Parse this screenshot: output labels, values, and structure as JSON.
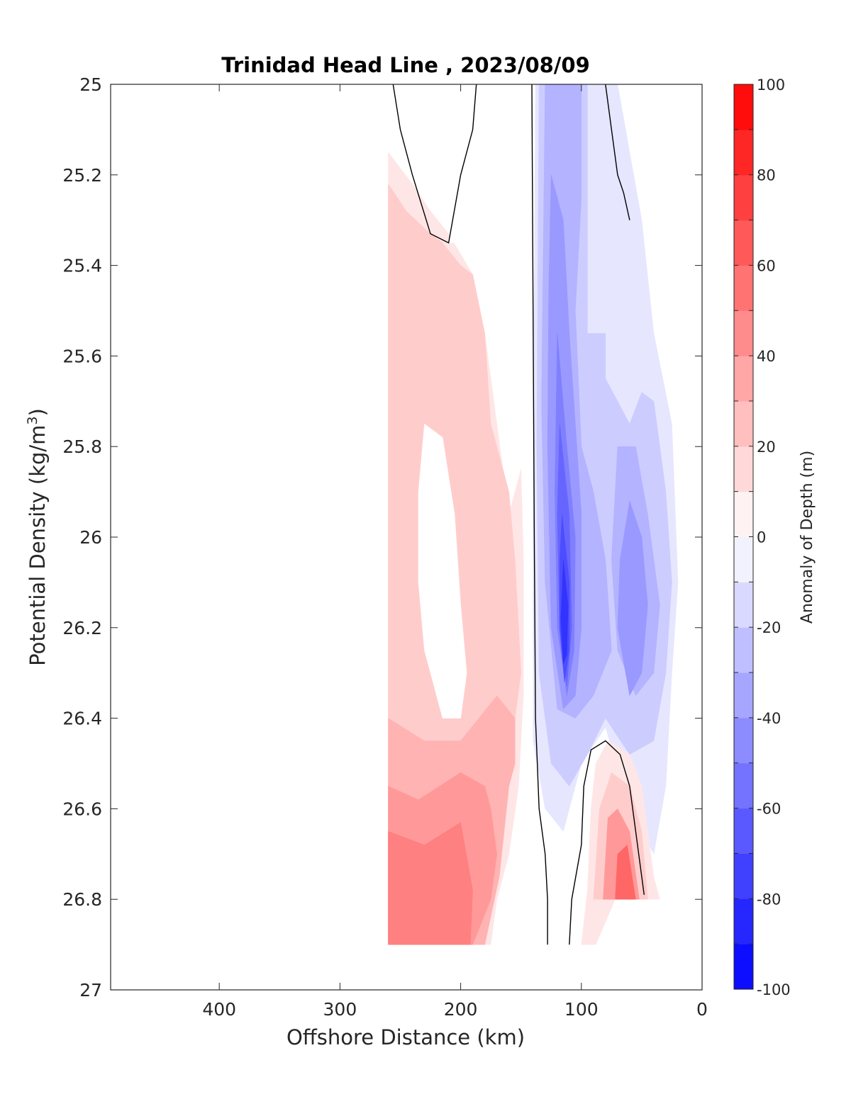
{
  "chart_data": {
    "type": "contour",
    "title": "Trinidad Head Line , 2023/08/09",
    "xlabel": "Offshore Distance (km)",
    "ylabel_main": "Potential Density (kg/m",
    "ylabel_sup": "3",
    "ylabel_end": ")",
    "colorbar_label": "Anomaly of Depth (m)",
    "xlim": [
      490,
      0
    ],
    "x_reversed": true,
    "ylim": [
      25,
      27
    ],
    "y_reversed": true,
    "x_ticks": [
      400,
      300,
      200,
      100,
      0
    ],
    "x_tick_labels": [
      "400",
      "300",
      "200",
      "100",
      "0"
    ],
    "y_ticks": [
      25,
      25.2,
      25.4,
      25.6,
      25.8,
      26,
      26.2,
      26.4,
      26.6,
      26.8,
      27
    ],
    "y_tick_labels": [
      "25",
      "25.2",
      "25.4",
      "25.6",
      "25.8",
      "26",
      "26.2",
      "26.4",
      "26.6",
      "26.8",
      "27"
    ],
    "colorbar": {
      "range": [
        -100,
        100
      ],
      "step": 10,
      "ticks": [
        100,
        80,
        60,
        40,
        20,
        0,
        -20,
        -40,
        -60,
        -80,
        -100
      ],
      "tick_labels": [
        "100",
        "80",
        "60",
        "40",
        "20",
        "0",
        "-20",
        "-40",
        "-60",
        "-80",
        "-100"
      ],
      "colormap": "blue-white-red",
      "low_color": "#0000ff",
      "high_color": "#ff0000",
      "mid_color": "#ffffff"
    },
    "data_extent": {
      "x": [
        20,
        260
      ],
      "y": [
        25,
        26.9
      ]
    },
    "zero_contour_color": "#000000",
    "regions": [
      {
        "level": 10,
        "points": [
          [
            260,
            25.15
          ],
          [
            240,
            25.22
          ],
          [
            225,
            25.28
          ],
          [
            210,
            25.33
          ],
          [
            190,
            25.42
          ],
          [
            180,
            25.55
          ],
          [
            170,
            25.75
          ],
          [
            160,
            25.95
          ],
          [
            150,
            25.85
          ],
          [
            148,
            26.05
          ],
          [
            148,
            26.35
          ],
          [
            152,
            26.55
          ],
          [
            160,
            26.7
          ],
          [
            170,
            26.8
          ],
          [
            175,
            26.9
          ],
          [
            260,
            26.9
          ]
        ]
      },
      {
        "level": 20,
        "points": [
          [
            260,
            25.22
          ],
          [
            245,
            25.28
          ],
          [
            225,
            25.33
          ],
          [
            215,
            25.35
          ],
          [
            200,
            25.4
          ],
          [
            190,
            25.42
          ],
          [
            180,
            25.55
          ],
          [
            175,
            25.75
          ],
          [
            165,
            25.85
          ],
          [
            160,
            25.9
          ],
          [
            155,
            26.05
          ],
          [
            150,
            26.3
          ],
          [
            160,
            26.5
          ],
          [
            165,
            26.6
          ],
          [
            175,
            26.8
          ],
          [
            180,
            26.9
          ],
          [
            260,
            26.9
          ]
        ]
      },
      {
        "level": 30,
        "points": [
          [
            260,
            26.4
          ],
          [
            230,
            26.45
          ],
          [
            200,
            26.45
          ],
          [
            170,
            26.35
          ],
          [
            155,
            26.4
          ],
          [
            155,
            26.5
          ],
          [
            160,
            26.55
          ],
          [
            168,
            26.75
          ],
          [
            180,
            26.9
          ],
          [
            260,
            26.9
          ]
        ]
      },
      {
        "level": 40,
        "points": [
          [
            260,
            26.55
          ],
          [
            235,
            26.58
          ],
          [
            200,
            26.52
          ],
          [
            180,
            26.55
          ],
          [
            175,
            26.6
          ],
          [
            170,
            26.7
          ],
          [
            175,
            26.8
          ],
          [
            190,
            26.9
          ],
          [
            260,
            26.9
          ]
        ]
      },
      {
        "level": 50,
        "points": [
          [
            260,
            26.65
          ],
          [
            230,
            26.68
          ],
          [
            200,
            26.63
          ],
          [
            190,
            26.78
          ],
          [
            192,
            26.9
          ],
          [
            260,
            26.9
          ]
        ]
      },
      {
        "level": -10,
        "points": [
          [
            138,
            25.0
          ],
          [
            70,
            25.0
          ],
          [
            50,
            25.3
          ],
          [
            40,
            25.55
          ],
          [
            25,
            25.75
          ],
          [
            20,
            26.1
          ],
          [
            25,
            26.3
          ],
          [
            30,
            26.55
          ],
          [
            40,
            26.7
          ],
          [
            60,
            26.6
          ],
          [
            80,
            26.42
          ],
          [
            100,
            26.5
          ],
          [
            115,
            26.65
          ],
          [
            130,
            26.6
          ],
          [
            140,
            26.45
          ],
          [
            140,
            25.8
          ]
        ]
      },
      {
        "level": -20,
        "points": [
          [
            135,
            25.0
          ],
          [
            95,
            25.0
          ],
          [
            95,
            25.55
          ],
          [
            80,
            25.55
          ],
          [
            80,
            25.65
          ],
          [
            70,
            25.7
          ],
          [
            60,
            25.75
          ],
          [
            50,
            25.68
          ],
          [
            40,
            25.7
          ],
          [
            30,
            25.9
          ],
          [
            25,
            26.1
          ],
          [
            30,
            26.3
          ],
          [
            40,
            26.45
          ],
          [
            60,
            26.48
          ],
          [
            80,
            26.4
          ],
          [
            95,
            26.48
          ],
          [
            110,
            26.55
          ],
          [
            125,
            26.5
          ],
          [
            135,
            26.3
          ],
          [
            137,
            25.8
          ]
        ]
      },
      {
        "level": -30,
        "points": [
          [
            130,
            25.0
          ],
          [
            100,
            25.0
          ],
          [
            100,
            25.25
          ],
          [
            105,
            25.5
          ],
          [
            100,
            25.8
          ],
          [
            90,
            25.9
          ],
          [
            80,
            26.05
          ],
          [
            75,
            26.25
          ],
          [
            90,
            26.35
          ],
          [
            105,
            26.4
          ],
          [
            120,
            26.38
          ],
          [
            130,
            26.1
          ],
          [
            133,
            25.7
          ]
        ]
      },
      {
        "level": -30,
        "points": [
          [
            70,
            25.8
          ],
          [
            55,
            25.8
          ],
          [
            45,
            25.95
          ],
          [
            35,
            26.15
          ],
          [
            40,
            26.3
          ],
          [
            55,
            26.35
          ],
          [
            70,
            26.25
          ],
          [
            75,
            26.05
          ]
        ]
      },
      {
        "level": -40,
        "points": [
          [
            125,
            25.2
          ],
          [
            115,
            25.3
          ],
          [
            110,
            25.55
          ],
          [
            105,
            25.75
          ],
          [
            100,
            25.95
          ],
          [
            100,
            26.2
          ],
          [
            105,
            26.35
          ],
          [
            115,
            26.38
          ],
          [
            125,
            26.2
          ],
          [
            128,
            25.8
          ],
          [
            127,
            25.45
          ]
        ]
      },
      {
        "level": -40,
        "points": [
          [
            60,
            25.92
          ],
          [
            50,
            26.0
          ],
          [
            45,
            26.15
          ],
          [
            50,
            26.3
          ],
          [
            60,
            26.35
          ],
          [
            70,
            26.2
          ],
          [
            68,
            26.05
          ]
        ]
      },
      {
        "level": -50,
        "points": [
          [
            120,
            25.55
          ],
          [
            112,
            25.8
          ],
          [
            105,
            26.0
          ],
          [
            106,
            26.25
          ],
          [
            112,
            26.35
          ],
          [
            120,
            26.2
          ],
          [
            122,
            25.9
          ]
        ]
      },
      {
        "level": -60,
        "points": [
          [
            118,
            25.75
          ],
          [
            110,
            25.95
          ],
          [
            108,
            26.2
          ],
          [
            112,
            26.33
          ],
          [
            118,
            26.2
          ],
          [
            120,
            25.95
          ]
        ]
      },
      {
        "level": -70,
        "points": [
          [
            116,
            25.95
          ],
          [
            110,
            26.1
          ],
          [
            110,
            26.25
          ],
          [
            114,
            26.32
          ],
          [
            118,
            26.2
          ],
          [
            118,
            26.05
          ]
        ]
      },
      {
        "level": -80,
        "points": [
          [
            115,
            26.05
          ],
          [
            111,
            26.15
          ],
          [
            112,
            26.26
          ],
          [
            115,
            26.28
          ],
          [
            117,
            26.18
          ]
        ]
      },
      {
        "level": 10,
        "points": [
          [
            100,
            26.9
          ],
          [
            95,
            26.78
          ],
          [
            92,
            26.6
          ],
          [
            88,
            26.5
          ],
          [
            78,
            26.45
          ],
          [
            60,
            26.48
          ],
          [
            50,
            26.55
          ],
          [
            40,
            26.75
          ],
          [
            35,
            26.8
          ],
          [
            60,
            26.8
          ],
          [
            72,
            26.8
          ],
          [
            88,
            26.9
          ]
        ]
      },
      {
        "level": 20,
        "points": [
          [
            90,
            26.8
          ],
          [
            85,
            26.6
          ],
          [
            75,
            26.52
          ],
          [
            60,
            26.55
          ],
          [
            50,
            26.65
          ],
          [
            45,
            26.8
          ]
        ]
      },
      {
        "level": 40,
        "points": [
          [
            82,
            26.8
          ],
          [
            78,
            26.62
          ],
          [
            70,
            26.6
          ],
          [
            60,
            26.65
          ],
          [
            52,
            26.8
          ]
        ]
      },
      {
        "level": 60,
        "points": [
          [
            72,
            26.8
          ],
          [
            70,
            26.7
          ],
          [
            62,
            26.68
          ],
          [
            58,
            26.75
          ],
          [
            55,
            26.8
          ]
        ]
      },
      {
        "level": 0,
        "points": [
          [
            230,
            26.25
          ],
          [
            215,
            26.4
          ],
          [
            200,
            26.4
          ],
          [
            195,
            26.3
          ],
          [
            200,
            26.15
          ],
          [
            205,
            25.95
          ],
          [
            215,
            25.78
          ],
          [
            230,
            25.75
          ],
          [
            235,
            25.9
          ],
          [
            235,
            26.1
          ]
        ]
      },
      {
        "level": 0,
        "points": [
          [
            150,
            25.0
          ],
          [
            180,
            25.0
          ],
          [
            200,
            25.2
          ],
          [
            210,
            25.35
          ],
          [
            185,
            25.35
          ],
          [
            175,
            25.2
          ]
        ]
      }
    ],
    "zero_contours": [
      [
        [
          256,
          25.0
        ],
        [
          250,
          25.1
        ],
        [
          240,
          25.2
        ],
        [
          225,
          25.33
        ],
        [
          210,
          25.35
        ],
        [
          200,
          25.2
        ],
        [
          190,
          25.1
        ],
        [
          187,
          25.0
        ]
      ],
      [
        [
          141,
          25.0
        ],
        [
          140,
          25.5
        ],
        [
          139,
          26.0
        ],
        [
          138,
          26.4
        ],
        [
          135,
          26.6
        ],
        [
          130,
          26.7
        ],
        [
          128,
          26.8
        ],
        [
          128,
          26.9
        ]
      ],
      [
        [
          80,
          25.0
        ],
        [
          75,
          25.1
        ],
        [
          70,
          25.2
        ],
        [
          65,
          25.24
        ],
        [
          60,
          25.3
        ]
      ],
      [
        [
          110,
          26.9
        ],
        [
          108,
          26.8
        ],
        [
          100,
          26.68
        ],
        [
          98,
          26.55
        ],
        [
          92,
          26.47
        ],
        [
          80,
          26.45
        ],
        [
          68,
          26.48
        ],
        [
          60,
          26.55
        ],
        [
          55,
          26.65
        ],
        [
          50,
          26.75
        ],
        [
          48,
          26.79
        ]
      ]
    ]
  }
}
